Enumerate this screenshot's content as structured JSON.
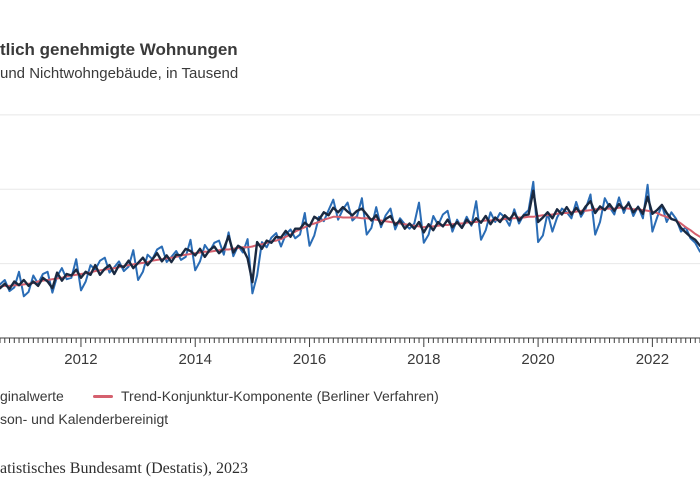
{
  "header": {
    "title": "tlich genehmigte Wohnungen",
    "subtitle": "und Nichtwohngebäude, in Tausend"
  },
  "legend": {
    "items": [
      {
        "label": "ginalwerte",
        "marker": "none"
      },
      {
        "label": "Trend-Konjunktur-Komponente (Berliner Verfahren)",
        "marker": "line",
        "color": "#d5606e"
      },
      {
        "label": "son- und Kalenderbereinigt",
        "marker": "none"
      }
    ]
  },
  "footer": {
    "source": "atistisches Bundesamt (Destatis), 2023"
  },
  "chart_data": {
    "type": "line",
    "title": "tlich genehmigte Wohnungen",
    "subtitle": "und Nichtwohngebäude, in Tausend",
    "unit": "Tausend",
    "x_monthly_start": "2010-08",
    "x_monthly_end": "2022-11",
    "x_ticks": [
      {
        "index": 17,
        "label": "2012"
      },
      {
        "index": 41,
        "label": "2014"
      },
      {
        "index": 65,
        "label": "2016"
      },
      {
        "index": 89,
        "label": "2018"
      },
      {
        "index": 113,
        "label": "2020"
      },
      {
        "index": 137,
        "label": "2022"
      }
    ],
    "ylim": [
      10,
      42
    ],
    "grid_values": [
      20,
      30,
      40
    ],
    "grid_on": true,
    "grid_color": "#e8e8e8",
    "axis_color": "#3f3f3f",
    "legend_position": "bottom-left",
    "series": [
      {
        "name": "ginalwerte",
        "full_name_hint": "Originalwerte",
        "color": "#2a6cb5",
        "width": 2,
        "values": [
          17.2,
          17.8,
          16.3,
          16.8,
          18.9,
          15.6,
          16.2,
          18.4,
          17.3,
          18.6,
          18.9,
          16.1,
          18.3,
          19.4,
          17.9,
          18.1,
          20.6,
          16.4,
          17.6,
          19.8,
          19.2,
          20.4,
          20.8,
          18.8,
          19.5,
          20.3,
          19.0,
          19.6,
          21.8,
          17.8,
          18.9,
          21.2,
          20.6,
          21.9,
          22.3,
          20.2,
          20.9,
          21.7,
          20.5,
          20.9,
          23.2,
          19.1,
          20.3,
          22.5,
          21.6,
          22.8,
          23.1,
          21.2,
          24.2,
          21.0,
          22.4,
          21.5,
          23.3,
          16.0,
          18.4,
          22.9,
          22.2,
          23.5,
          24.1,
          22.3,
          23.9,
          24.6,
          23.4,
          23.9,
          26.8,
          22.4,
          23.8,
          26.3,
          25.7,
          27.2,
          28.6,
          25.9,
          27.3,
          28.2,
          25.8,
          26.4,
          28.8,
          23.9,
          24.8,
          27.6,
          24.9,
          26.5,
          27.4,
          24.6,
          26.1,
          25.3,
          24.7,
          25.4,
          28.2,
          22.8,
          23.9,
          26.4,
          25.2,
          26.6,
          27.1,
          24.3,
          25.9,
          24.8,
          26.3,
          25.1,
          28.4,
          23.2,
          24.5,
          26.9,
          25.6,
          26.8,
          26.2,
          25.1,
          27.3,
          25.4,
          26.6,
          27.2,
          31.0,
          22.9,
          23.8,
          26.8,
          24.3,
          26.2,
          27.4,
          26.9,
          26.1,
          28.3,
          26.3,
          27.4,
          29.3,
          23.9,
          25.6,
          28.8,
          27.6,
          26.6,
          28.9,
          26.8,
          28.3,
          26.4,
          27.7,
          26.1,
          30.6,
          24.3,
          26.2,
          27.9,
          25.6,
          26.9,
          26.0,
          24.3,
          24.9,
          23.4,
          22.8,
          21.6
        ]
      },
      {
        "name": "Trend-Konjunktur-Komponente (Berliner Verfahren)",
        "color": "#d5606e",
        "width": 2,
        "values": [
          16.9,
          17.0,
          17.0,
          17.1,
          17.1,
          17.2,
          17.3,
          17.4,
          17.6,
          17.7,
          17.8,
          17.9,
          18.0,
          18.1,
          18.3,
          18.4,
          18.5,
          18.6,
          18.7,
          18.8,
          19.0,
          19.1,
          19.2,
          19.3,
          19.4,
          19.5,
          19.7,
          19.8,
          19.9,
          20.0,
          20.1,
          20.2,
          20.4,
          20.5,
          20.6,
          20.7,
          20.8,
          20.9,
          21.1,
          21.2,
          21.3,
          21.4,
          21.5,
          21.6,
          21.6,
          21.7,
          21.8,
          21.9,
          21.9,
          22.0,
          22.1,
          22.2,
          22.2,
          22.3,
          22.5,
          22.6,
          22.8,
          23.0,
          23.1,
          23.3,
          23.6,
          23.9,
          24.3,
          24.6,
          24.9,
          25.2,
          25.4,
          25.6,
          25.9,
          26.1,
          26.3,
          26.3,
          26.2,
          26.2,
          26.2,
          26.2,
          26.1,
          26.1,
          26.0,
          25.9,
          25.8,
          25.7,
          25.6,
          25.5,
          25.4,
          25.3,
          25.2,
          25.1,
          25.0,
          24.9,
          25.0,
          25.0,
          25.1,
          25.2,
          25.2,
          25.3,
          25.4,
          25.4,
          25.5,
          25.6,
          25.6,
          25.7,
          25.8,
          25.8,
          25.9,
          25.9,
          26.0,
          26.1,
          26.1,
          26.2,
          26.2,
          26.3,
          26.3,
          26.4,
          26.5,
          26.5,
          26.6,
          26.7,
          26.8,
          26.8,
          26.9,
          27.0,
          27.1,
          27.1,
          27.2,
          27.3,
          27.3,
          27.4,
          27.4,
          27.4,
          27.5,
          27.5,
          27.4,
          27.3,
          27.3,
          27.2,
          27.1,
          27.0,
          26.8,
          26.5,
          26.3,
          26.0,
          25.8,
          25.4,
          24.9,
          24.5,
          24.0,
          23.6
        ]
      },
      {
        "name": "son- und Kalenderbereinigt",
        "full_name_hint": "Saison- und Kalenderbereinigt",
        "color": "#1a2940",
        "width": 2.4,
        "values": [
          16.7,
          17.3,
          16.6,
          17.6,
          17.1,
          17.8,
          17.0,
          17.6,
          17.0,
          18.1,
          17.6,
          16.7,
          18.8,
          17.7,
          18.6,
          18.4,
          19.2,
          18.1,
          18.9,
          18.5,
          19.8,
          18.5,
          19.3,
          19.8,
          18.6,
          19.8,
          19.5,
          20.4,
          19.4,
          20.1,
          20.8,
          19.8,
          20.6,
          21.4,
          20.3,
          21.1,
          20.2,
          21.2,
          21.1,
          22.0,
          21.7,
          21.1,
          22.0,
          20.9,
          21.8,
          22.3,
          21.4,
          22.0,
          23.7,
          21.5,
          22.4,
          22.0,
          20.7,
          17.5,
          22.9,
          22.0,
          23.1,
          22.8,
          23.6,
          23.5,
          24.4,
          23.6,
          24.7,
          24.7,
          25.5,
          25.0,
          26.3,
          25.9,
          26.9,
          26.5,
          27.5,
          26.9,
          27.6,
          27.0,
          26.5,
          27.1,
          27.4,
          26.6,
          25.8,
          26.5,
          25.3,
          26.0,
          26.4,
          25.2,
          25.8,
          24.7,
          25.4,
          24.7,
          25.6,
          24.2,
          25.3,
          24.5,
          25.6,
          25.0,
          25.9,
          24.9,
          25.6,
          24.8,
          25.9,
          25.3,
          26.1,
          25.5,
          26.4,
          25.3,
          26.2,
          25.6,
          26.5,
          25.9,
          26.8,
          25.8,
          26.5,
          26.6,
          29.8,
          25.6,
          26.2,
          26.9,
          26.1,
          27.3,
          26.6,
          27.6,
          26.6,
          27.5,
          26.7,
          27.7,
          28.4,
          26.8,
          27.7,
          27.2,
          28.0,
          27.1,
          28.0,
          27.3,
          28.1,
          26.9,
          27.6,
          26.7,
          29.0,
          26.7,
          27.2,
          27.9,
          26.8,
          26.0,
          25.8,
          24.8,
          24.2,
          23.6,
          23.2,
          22.4
        ]
      }
    ]
  }
}
